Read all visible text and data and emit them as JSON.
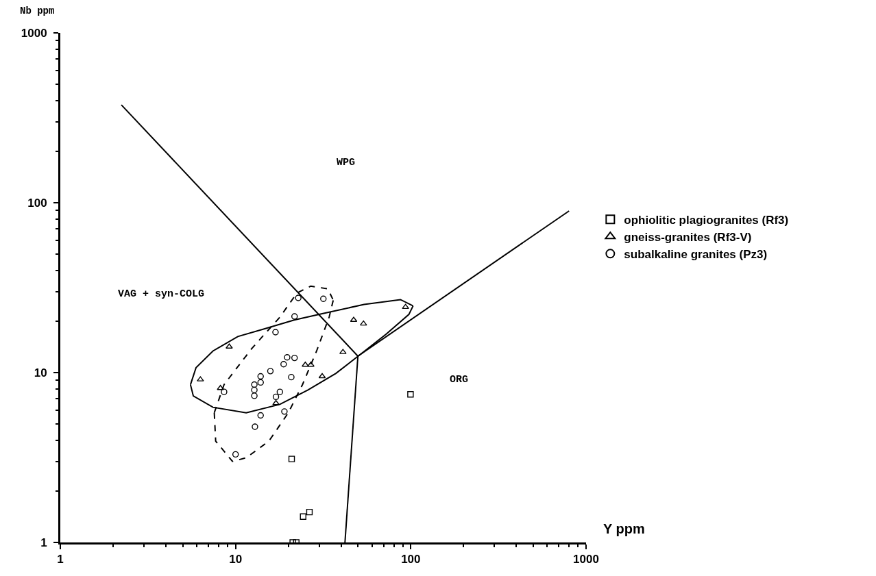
{
  "chart_data": {
    "type": "scatter",
    "xlabel": "Y ppm",
    "ylabel": "Nb ppm",
    "xlim": [
      1,
      1000
    ],
    "ylim": [
      1,
      1000
    ],
    "xticks": [
      1,
      10,
      100,
      1000
    ],
    "yticks": [
      1,
      10,
      100,
      1000
    ],
    "log": "xy",
    "legend": "right",
    "annotations": [
      "WPG",
      "VAG + syn-COLG",
      "ORG"
    ],
    "series": [
      {
        "name": "ophiolitic plagiogranites (Rf3)",
        "color": "#000000",
        "marker": "square",
        "x": [
          20.9,
          24.3,
          26.4,
          21.2,
          22.2,
          99.6
        ],
        "values": [
          3.1,
          1.42,
          1.51,
          1.0,
          1.0,
          7.45
        ]
      },
      {
        "name": "gneiss-granites (Rf3-V)",
        "color": "#000000",
        "marker": "triangle",
        "x": [
          6.3,
          9.2,
          8.2,
          17.0,
          25.0,
          26.9,
          31.2,
          41,
          47.2,
          53.7,
          93.3
        ],
        "values": [
          9.1,
          14.2,
          8.1,
          6.6,
          11.1,
          11.1,
          9.5,
          13.2,
          20.4,
          19.4,
          24.3
        ]
      },
      {
        "name": "subalkaline granites (Pz3)",
        "color": "#000000",
        "marker": "circle",
        "x": [
          22.8,
          31.7,
          21.7,
          16.9,
          19.7,
          21.7,
          18.8,
          15.8,
          13.9,
          13.9,
          12.8,
          12.8,
          12.8,
          20.8,
          17.9,
          17.0,
          8.6,
          19.0,
          13.9,
          12.9,
          10.0
        ],
        "values": [
          27.5,
          27.2,
          21.4,
          17.3,
          12.3,
          12.2,
          11.2,
          10.2,
          9.5,
          8.75,
          8.5,
          7.9,
          7.3,
          9.4,
          7.7,
          7.2,
          7.7,
          5.9,
          5.6,
          4.8,
          3.3
        ]
      },
      {
        "type": "line",
        "color": "#000000",
        "line_style": "solid",
        "x": [
          2.23,
          49.9
        ],
        "values": [
          377,
          12.5
        ]
      },
      {
        "type": "line",
        "color": "#000000",
        "line_style": "solid",
        "x": [
          49.9,
          800
        ],
        "values": [
          12.5,
          89.5
        ]
      },
      {
        "type": "line",
        "color": "#000000",
        "line_style": "solid",
        "x": [
          49.9,
          42.1
        ],
        "values": [
          12.5,
          1
        ]
      },
      {
        "type": "line",
        "color": "#000000",
        "line_style": "solid",
        "x": [
          5.53,
          5.95,
          7.43,
          10.3,
          14.9,
          21.6,
          31.2,
          54.1,
          87.3,
          103
        ],
        "values": [
          8.49,
          10.7,
          13.4,
          16.3,
          18.2,
          20.4,
          22.2,
          25.2,
          26.9,
          24.7
        ]
      },
      {
        "type": "line",
        "color": "#000000",
        "line_style": "solid",
        "x": [
          5.53,
          5.74,
          7.43,
          11.5,
          17.9,
          25.9,
          37.4,
          52.1,
          72.6,
          97.5,
          103
        ],
        "values": [
          8.49,
          7.28,
          6.25,
          5.8,
          6.5,
          7.9,
          9.9,
          12.9,
          16.9,
          22.0,
          24.7
        ]
      },
      {
        "type": "line",
        "color": "#000000",
        "line_style": "dashed",
        "x": [
          7.56,
          8.6,
          12.4,
          17.9,
          22.4,
          26.9,
          33.6,
          36.1,
          null,
          7.56,
          7.7,
          9.6,
          11.5,
          15.5,
          20.0,
          24.1,
          29.0,
          34.2,
          36.1
        ],
        "values": [
          5.8,
          8.5,
          13.9,
          21.2,
          29.4,
          32.3,
          31.1,
          26.7,
          null,
          5.8,
          3.95,
          3.0,
          3.15,
          3.95,
          5.8,
          8.5,
          13.4,
          21.2,
          26.7
        ]
      }
    ]
  }
}
